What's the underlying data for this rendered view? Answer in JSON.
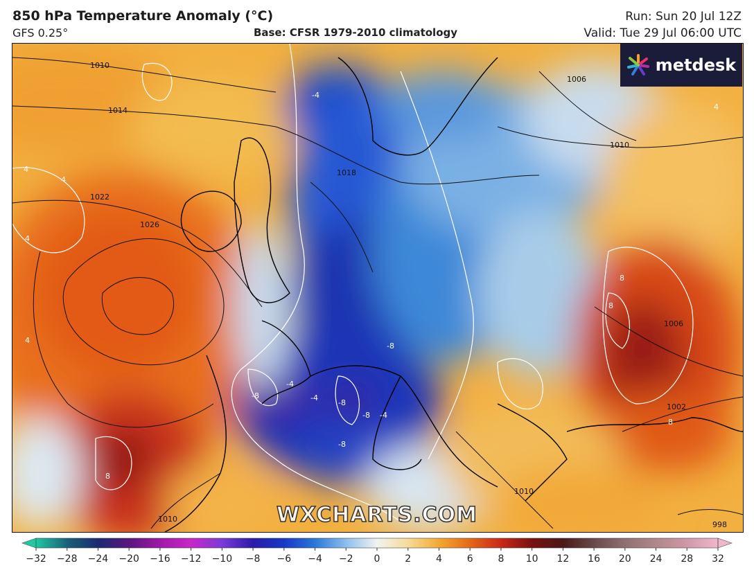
{
  "header": {
    "title": "850 hPa Temperature Anomaly (°C)",
    "model": "GFS 0.25°",
    "base": "Base: CFSR 1979-2010 climatology",
    "run": "Run: Sun 20 Jul 12Z",
    "valid": "Valid: Tue 29 Jul 06:00 UTC"
  },
  "branding": {
    "logo_text": "metdesk",
    "watermark": "WXCHARTS.COM"
  },
  "map": {
    "pressure_labels": [
      "1010",
      "1014",
      "1022",
      "1026",
      "1018",
      "1006",
      "1010",
      "1006",
      "1002",
      "1010",
      "998",
      "1010"
    ],
    "anomaly_labels": [
      "4",
      "4",
      "4",
      "4",
      "4",
      "-4",
      "-4",
      "-4",
      "-4",
      "-8",
      "-8",
      "-8",
      "-8",
      "-8",
      "8",
      "8",
      "8",
      "8"
    ]
  },
  "colorbar": {
    "ticks": [
      "−32",
      "−28",
      "−24",
      "−20",
      "−16",
      "−12",
      "−10",
      "−8",
      "−6",
      "−4",
      "−2",
      "0",
      "2",
      "4",
      "6",
      "8",
      "10",
      "12",
      "16",
      "20",
      "24",
      "28",
      "32"
    ],
    "stops": [
      "#1ec8a0",
      "#18607a",
      "#1a2a70",
      "#5a1680",
      "#a018a8",
      "#c828c8",
      "#7a3ad8",
      "#2a1aa8",
      "#1638c8",
      "#2c78d8",
      "#8cc0ec",
      "#f2f2f2",
      "#f4dc98",
      "#f4a830",
      "#e46818",
      "#c82818",
      "#7a1010",
      "#4a1818",
      "#6a4a4a",
      "#907070",
      "#b08888",
      "#d098a8",
      "#f0b8c8"
    ]
  }
}
